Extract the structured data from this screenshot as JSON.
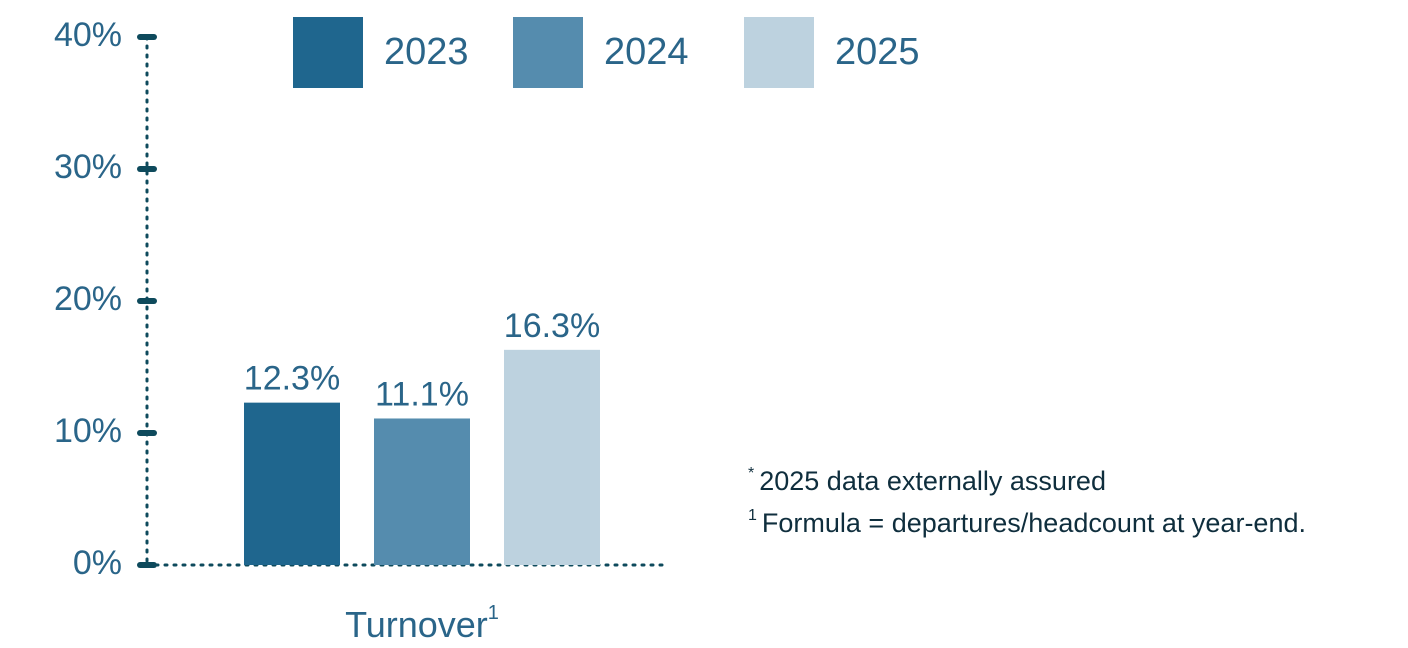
{
  "chart_data": {
    "type": "bar",
    "categories": [
      "Turnover"
    ],
    "category_superscripts": [
      "1"
    ],
    "series": [
      {
        "name": "2023",
        "color": "#1f668e",
        "values": [
          12.3
        ],
        "value_labels": [
          "12.3%"
        ]
      },
      {
        "name": "2024",
        "color": "#558cae",
        "values": [
          11.1
        ],
        "value_labels": [
          "11.1%"
        ]
      },
      {
        "name": "2025",
        "color": "#bdd2df",
        "values": [
          16.3
        ],
        "value_labels": [
          "16.3%"
        ]
      }
    ],
    "ylim": [
      0,
      40
    ],
    "yticks": [
      {
        "value": 0,
        "label": "0%"
      },
      {
        "value": 10,
        "label": "10%"
      },
      {
        "value": 20,
        "label": "20%"
      },
      {
        "value": 30,
        "label": "30%"
      },
      {
        "value": 40,
        "label": "40%"
      }
    ],
    "legend": "top",
    "footnotes": [
      {
        "marker": "*",
        "text": "2025 data externally assured"
      },
      {
        "marker": "1",
        "text": "Formula = departures/headcount at year-end."
      }
    ]
  }
}
